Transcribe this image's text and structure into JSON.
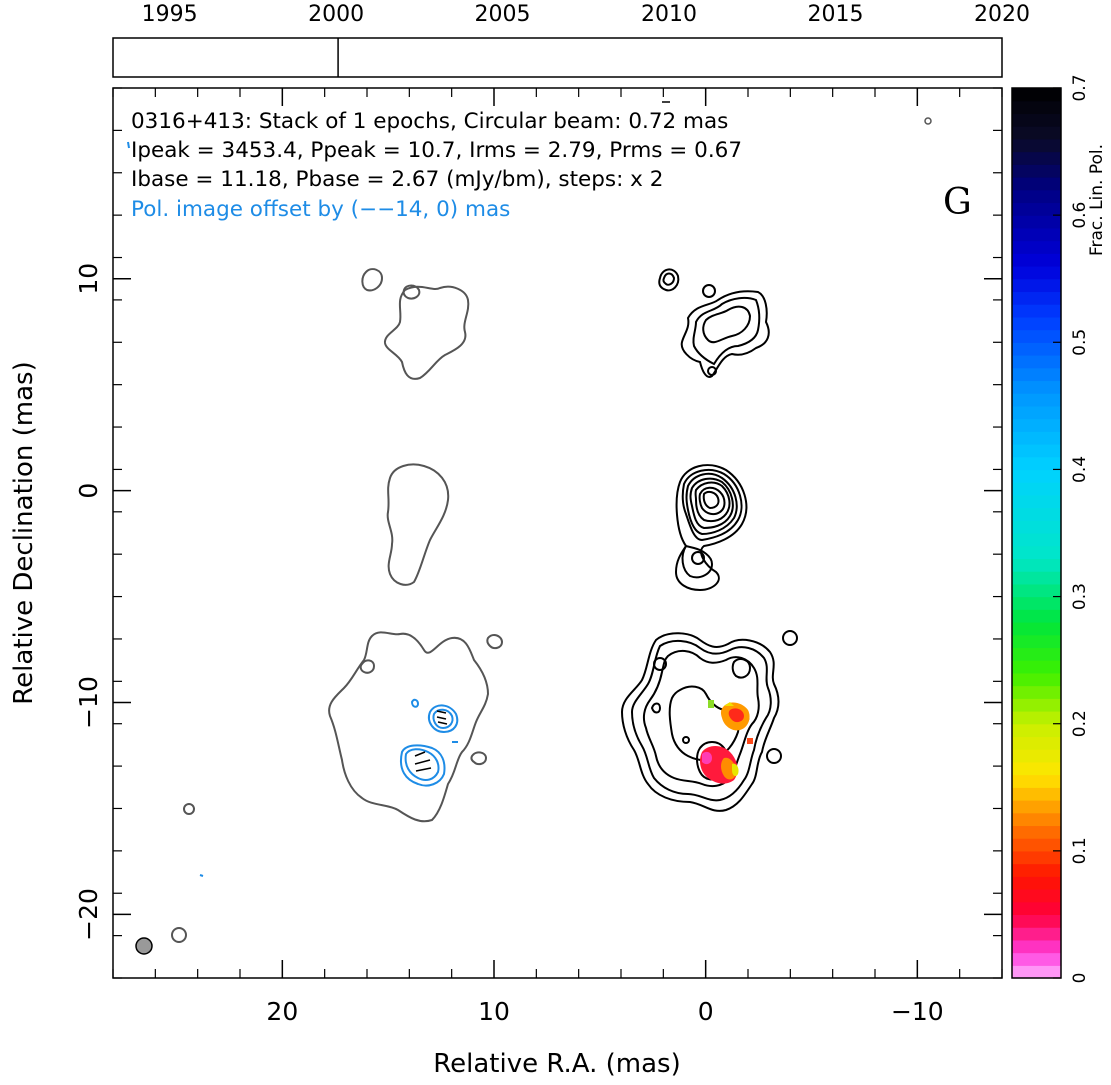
{
  "chart_data": {
    "type": "contour",
    "title": "",
    "source": "0316+413",
    "panel_label": "G",
    "info_lines": [
      "0316+413: Stack of 1 epochs, Circular beam: 0.72 mas",
      "Ipeak = 3453.4, Ppeak = 10.7, Irms = 2.79, Prms = 0.67",
      "Ibase = 11.18, Pbase = 2.67 (mJy/bm), steps: x 2",
      "Pol. image offset by (−−14, 0) mas"
    ],
    "xlabel": "Relative R.A. (mas)",
    "ylabel": "Relative Declination (mas)",
    "xlim": [
      28,
      -14
    ],
    "ylim": [
      -23,
      19
    ],
    "x_ticks": [
      20,
      10,
      0,
      -10
    ],
    "x_tick_labels": [
      "20",
      "10",
      "0",
      "−10"
    ],
    "y_ticks": [
      10,
      0,
      -10,
      -20
    ],
    "y_tick_labels": [
      "10",
      "0",
      "−10",
      "−20"
    ],
    "timeline": {
      "ticks": [
        1995,
        2000,
        2005,
        2010,
        2015,
        2020
      ],
      "tick_labels": [
        "1995",
        "2000",
        "2005",
        "2010",
        "2015",
        "2020"
      ],
      "epochs": [
        2000.0
      ]
    },
    "colorbar": {
      "label": "Frac. Lin. Pol.",
      "range": [
        0,
        0.7
      ],
      "ticks": [
        0,
        0.1,
        0.2,
        0.3,
        0.4,
        0.5,
        0.6,
        0.7
      ],
      "tick_labels": [
        "0",
        "0.1",
        "0.2",
        "0.3",
        "0.4",
        "0.5",
        "0.6",
        "0.7"
      ]
    },
    "beam_mas": 0.72,
    "colors": {
      "stokes_i": "#000000",
      "pol_contours": "#555555",
      "pol_offset": "#1e8ce6"
    }
  }
}
